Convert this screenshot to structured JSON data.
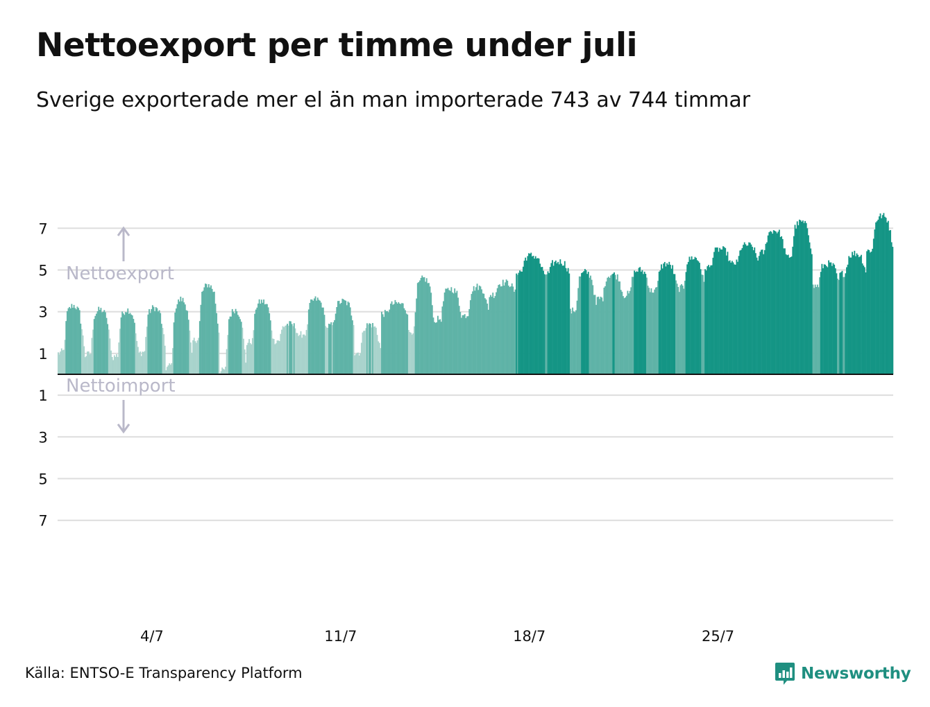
{
  "header": {
    "title": "Nettoexport per timme under juli",
    "subtitle": "Sverige exporterade mer el än man importerade 743 av 744 timmar"
  },
  "footer": {
    "source": "Källa: ENTSO-E Transparency Platform",
    "brand": "Newsworthy"
  },
  "colors": {
    "bar_low": "#a9d3cc",
    "bar_mid": "#5fb3a7",
    "bar_high": "#149585",
    "annotation": "#b9b8c9",
    "grid": "#dddddd",
    "baseline": "#111111",
    "brand": "#1f8f80"
  },
  "chart_data": {
    "type": "bar",
    "title": "Nettoexport per timme under juli",
    "subtitle": "Sverige exporterade mer el än man importerade 743 av 744 timmar",
    "xlabel": "",
    "ylabel": "",
    "hours": 744,
    "ylim": [
      -7.8,
      7.8
    ],
    "grid": true,
    "y_ticks": [
      {
        "value": 7,
        "label": "7"
      },
      {
        "value": 5,
        "label": "5"
      },
      {
        "value": 3,
        "label": "3"
      },
      {
        "value": 1,
        "label": "1"
      },
      {
        "value": -1,
        "label": "1"
      },
      {
        "value": -3,
        "label": "3"
      },
      {
        "value": -5,
        "label": "5"
      },
      {
        "value": -7,
        "label": "7"
      }
    ],
    "x_ticks": [
      {
        "day": 4,
        "label": "4/7"
      },
      {
        "day": 11,
        "label": "11/7"
      },
      {
        "day": 18,
        "label": "18/7"
      },
      {
        "day": 25,
        "label": "25/7"
      }
    ],
    "annotations": {
      "export": "Nettoexport",
      "import": "Nettoimport"
    },
    "daily_pattern": [
      {
        "day": 1,
        "night": 1.0,
        "peak": 3.3
      },
      {
        "day": 2,
        "night": 0.9,
        "peak": 3.1
      },
      {
        "day": 3,
        "night": 0.8,
        "peak": 3.1
      },
      {
        "day": 4,
        "night": 1.0,
        "peak": 3.2
      },
      {
        "day": 5,
        "night": 0.3,
        "peak": 3.6
      },
      {
        "day": 6,
        "night": 1.6,
        "peak": 4.3
      },
      {
        "day": 7,
        "night": 0.1,
        "peak": 3.1
      },
      {
        "day": 8,
        "night": 1.5,
        "peak": 3.5
      },
      {
        "day": 9,
        "night": 1.6,
        "peak": 2.4
      },
      {
        "day": 10,
        "night": 1.9,
        "peak": 3.6
      },
      {
        "day": 11,
        "night": 2.3,
        "peak": 3.5
      },
      {
        "day": 12,
        "night": 1.0,
        "peak": 2.4
      },
      {
        "day": 13,
        "night": 2.9,
        "peak": 3.4
      },
      {
        "day": 14,
        "night": 2.0,
        "peak": 4.6
      },
      {
        "day": 15,
        "night": 2.6,
        "peak": 4.1
      },
      {
        "day": 16,
        "night": 2.8,
        "peak": 4.2
      },
      {
        "day": 17,
        "night": 3.8,
        "peak": 4.4
      },
      {
        "day": 18,
        "night": 4.9,
        "peak": 5.7
      },
      {
        "day": 19,
        "night": 4.8,
        "peak": 5.4
      },
      {
        "day": 20,
        "night": 3.0,
        "peak": 4.9
      },
      {
        "day": 21,
        "night": 3.6,
        "peak": 4.8
      },
      {
        "day": 22,
        "night": 3.8,
        "peak": 5.0
      },
      {
        "day": 23,
        "night": 4.0,
        "peak": 5.3
      },
      {
        "day": 24,
        "night": 4.1,
        "peak": 5.6
      },
      {
        "day": 25,
        "night": 5.1,
        "peak": 6.0
      },
      {
        "day": 26,
        "night": 5.3,
        "peak": 6.2
      },
      {
        "day": 27,
        "night": 5.8,
        "peak": 6.9
      },
      {
        "day": 28,
        "night": 5.6,
        "peak": 7.3
      },
      {
        "day": 29,
        "night": 4.2,
        "peak": 5.3
      },
      {
        "day": 30,
        "night": 4.8,
        "peak": 5.8
      },
      {
        "day": 31,
        "night": 5.9,
        "peak": 7.6
      }
    ]
  }
}
